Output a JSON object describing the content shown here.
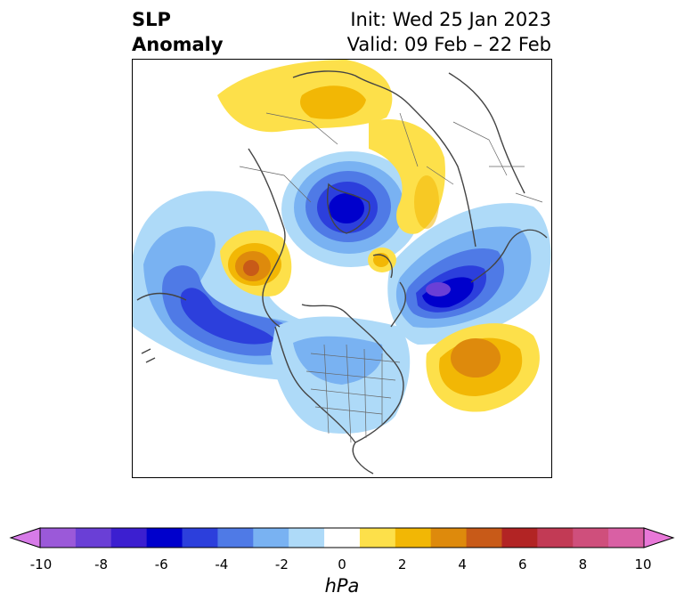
{
  "header": {
    "title_line1": "SLP",
    "title_line2": "Anomaly",
    "init": "Init: Wed 25 Jan 2023",
    "valid": "Valid: 09 Feb – 22 Feb"
  },
  "colorbar": {
    "unit": "hPa",
    "ticks": [
      "-10",
      "-8",
      "-6",
      "-4",
      "-2",
      "0",
      "2",
      "4",
      "6",
      "8",
      "10"
    ],
    "colors": [
      "#d77be8",
      "#9b59d9",
      "#6a3fd6",
      "#3c1fd0",
      "#0000cc",
      "#2c3fdc",
      "#4f7ae6",
      "#79b2f2",
      "#aedaf8",
      "#ffffff",
      "#fde04a",
      "#f2b705",
      "#de8a0c",
      "#c85a18",
      "#b22424",
      "#c23a55",
      "#cf4f7c",
      "#d960a4",
      "#e878d8"
    ]
  },
  "map": {
    "field": "sea level pressure anomaly",
    "projection": "north polar stereographic",
    "features": [
      {
        "name": "negative-anomaly-arctic",
        "sign": "negative",
        "peak_hpa": -6
      },
      {
        "name": "negative-anomaly-north-pacific",
        "sign": "negative",
        "peak_hpa": -5
      },
      {
        "name": "negative-anomaly-north-atlantic-scandinavia",
        "sign": "negative",
        "peak_hpa": -7
      },
      {
        "name": "positive-anomaly-eastern-siberia",
        "sign": "positive",
        "peak_hpa": 5
      },
      {
        "name": "positive-anomaly-russia",
        "sign": "positive",
        "peak_hpa": 3
      },
      {
        "name": "positive-anomaly-central-atlantic",
        "sign": "positive",
        "peak_hpa": 4
      },
      {
        "name": "positive-anomaly-ural",
        "sign": "positive",
        "peak_hpa": 2
      }
    ]
  }
}
